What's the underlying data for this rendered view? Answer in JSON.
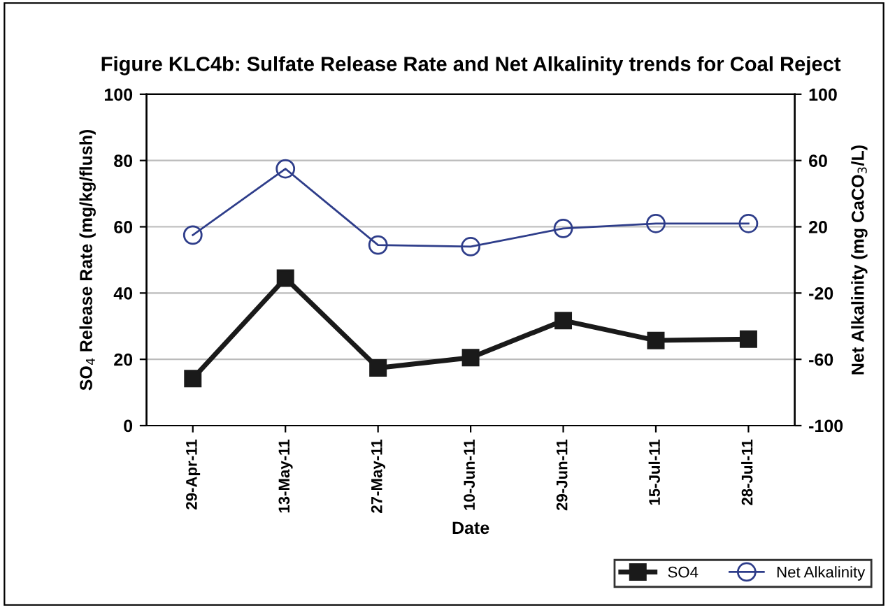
{
  "chart_data": {
    "type": "line",
    "title": "Figure KLC4b: Sulfate Release Rate and Net Alkalinity trends for Coal Reject",
    "xlabel": "Date",
    "ylabel": "SO$_{4}$ Release Rate (mg/kg/flush)",
    "y2label": "Net Alkalinity (mg CaCO$_{3}$/L)",
    "categories": [
      "29-Apr-11",
      "13-May-11",
      "27-May-11",
      "10-Jun-11",
      "29-Jun-11",
      "15-Jul-11",
      "28-Jul-11"
    ],
    "series": [
      {
        "name": "SO4",
        "color": "#1a1a1a",
        "marker": "square",
        "values": [
          14.2,
          44.5,
          17.4,
          20.5,
          31.7,
          25.7,
          26.1
        ]
      },
      {
        "name": "Net Alkalinity",
        "color": "#2e3d8a",
        "marker": "circle",
        "axis": "y2",
        "values": [
          15,
          55,
          9,
          8,
          19,
          22,
          22
        ]
      }
    ],
    "ylim": [
      0,
      100
    ],
    "yticks": [
      0,
      20,
      40,
      60,
      80,
      100
    ],
    "y2lim": [
      -100,
      100
    ],
    "y2ticks": [
      -100,
      -60,
      -20,
      20,
      60,
      100
    ],
    "grid": "y",
    "legend": "bottom right",
    "line_style": "solid"
  }
}
